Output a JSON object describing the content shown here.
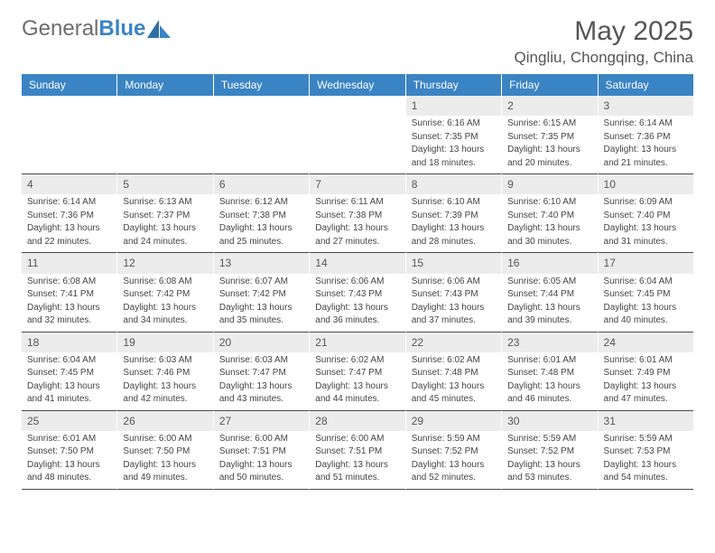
{
  "brand": {
    "part1": "General",
    "part2": "Blue"
  },
  "title": "May 2025",
  "location": "Qingliu, Chongqing, China",
  "colors": {
    "header_bg": "#3b84c4",
    "header_text": "#ffffff",
    "daynum_bg": "#ececec",
    "body_text": "#444444",
    "rule": "#4a4a4a"
  },
  "daysOfWeek": [
    "Sunday",
    "Monday",
    "Tuesday",
    "Wednesday",
    "Thursday",
    "Friday",
    "Saturday"
  ],
  "weeks": [
    [
      {
        "n": "",
        "blank": true
      },
      {
        "n": "",
        "blank": true
      },
      {
        "n": "",
        "blank": true
      },
      {
        "n": "",
        "blank": true
      },
      {
        "n": "1",
        "sr": "Sunrise: 6:16 AM",
        "ss": "Sunset: 7:35 PM",
        "d1": "Daylight: 13 hours",
        "d2": "and 18 minutes."
      },
      {
        "n": "2",
        "sr": "Sunrise: 6:15 AM",
        "ss": "Sunset: 7:35 PM",
        "d1": "Daylight: 13 hours",
        "d2": "and 20 minutes."
      },
      {
        "n": "3",
        "sr": "Sunrise: 6:14 AM",
        "ss": "Sunset: 7:36 PM",
        "d1": "Daylight: 13 hours",
        "d2": "and 21 minutes."
      }
    ],
    [
      {
        "n": "4",
        "sr": "Sunrise: 6:14 AM",
        "ss": "Sunset: 7:36 PM",
        "d1": "Daylight: 13 hours",
        "d2": "and 22 minutes."
      },
      {
        "n": "5",
        "sr": "Sunrise: 6:13 AM",
        "ss": "Sunset: 7:37 PM",
        "d1": "Daylight: 13 hours",
        "d2": "and 24 minutes."
      },
      {
        "n": "6",
        "sr": "Sunrise: 6:12 AM",
        "ss": "Sunset: 7:38 PM",
        "d1": "Daylight: 13 hours",
        "d2": "and 25 minutes."
      },
      {
        "n": "7",
        "sr": "Sunrise: 6:11 AM",
        "ss": "Sunset: 7:38 PM",
        "d1": "Daylight: 13 hours",
        "d2": "and 27 minutes."
      },
      {
        "n": "8",
        "sr": "Sunrise: 6:10 AM",
        "ss": "Sunset: 7:39 PM",
        "d1": "Daylight: 13 hours",
        "d2": "and 28 minutes."
      },
      {
        "n": "9",
        "sr": "Sunrise: 6:10 AM",
        "ss": "Sunset: 7:40 PM",
        "d1": "Daylight: 13 hours",
        "d2": "and 30 minutes."
      },
      {
        "n": "10",
        "sr": "Sunrise: 6:09 AM",
        "ss": "Sunset: 7:40 PM",
        "d1": "Daylight: 13 hours",
        "d2": "and 31 minutes."
      }
    ],
    [
      {
        "n": "11",
        "sr": "Sunrise: 6:08 AM",
        "ss": "Sunset: 7:41 PM",
        "d1": "Daylight: 13 hours",
        "d2": "and 32 minutes."
      },
      {
        "n": "12",
        "sr": "Sunrise: 6:08 AM",
        "ss": "Sunset: 7:42 PM",
        "d1": "Daylight: 13 hours",
        "d2": "and 34 minutes."
      },
      {
        "n": "13",
        "sr": "Sunrise: 6:07 AM",
        "ss": "Sunset: 7:42 PM",
        "d1": "Daylight: 13 hours",
        "d2": "and 35 minutes."
      },
      {
        "n": "14",
        "sr": "Sunrise: 6:06 AM",
        "ss": "Sunset: 7:43 PM",
        "d1": "Daylight: 13 hours",
        "d2": "and 36 minutes."
      },
      {
        "n": "15",
        "sr": "Sunrise: 6:06 AM",
        "ss": "Sunset: 7:43 PM",
        "d1": "Daylight: 13 hours",
        "d2": "and 37 minutes."
      },
      {
        "n": "16",
        "sr": "Sunrise: 6:05 AM",
        "ss": "Sunset: 7:44 PM",
        "d1": "Daylight: 13 hours",
        "d2": "and 39 minutes."
      },
      {
        "n": "17",
        "sr": "Sunrise: 6:04 AM",
        "ss": "Sunset: 7:45 PM",
        "d1": "Daylight: 13 hours",
        "d2": "and 40 minutes."
      }
    ],
    [
      {
        "n": "18",
        "sr": "Sunrise: 6:04 AM",
        "ss": "Sunset: 7:45 PM",
        "d1": "Daylight: 13 hours",
        "d2": "and 41 minutes."
      },
      {
        "n": "19",
        "sr": "Sunrise: 6:03 AM",
        "ss": "Sunset: 7:46 PM",
        "d1": "Daylight: 13 hours",
        "d2": "and 42 minutes."
      },
      {
        "n": "20",
        "sr": "Sunrise: 6:03 AM",
        "ss": "Sunset: 7:47 PM",
        "d1": "Daylight: 13 hours",
        "d2": "and 43 minutes."
      },
      {
        "n": "21",
        "sr": "Sunrise: 6:02 AM",
        "ss": "Sunset: 7:47 PM",
        "d1": "Daylight: 13 hours",
        "d2": "and 44 minutes."
      },
      {
        "n": "22",
        "sr": "Sunrise: 6:02 AM",
        "ss": "Sunset: 7:48 PM",
        "d1": "Daylight: 13 hours",
        "d2": "and 45 minutes."
      },
      {
        "n": "23",
        "sr": "Sunrise: 6:01 AM",
        "ss": "Sunset: 7:48 PM",
        "d1": "Daylight: 13 hours",
        "d2": "and 46 minutes."
      },
      {
        "n": "24",
        "sr": "Sunrise: 6:01 AM",
        "ss": "Sunset: 7:49 PM",
        "d1": "Daylight: 13 hours",
        "d2": "and 47 minutes."
      }
    ],
    [
      {
        "n": "25",
        "sr": "Sunrise: 6:01 AM",
        "ss": "Sunset: 7:50 PM",
        "d1": "Daylight: 13 hours",
        "d2": "and 48 minutes."
      },
      {
        "n": "26",
        "sr": "Sunrise: 6:00 AM",
        "ss": "Sunset: 7:50 PM",
        "d1": "Daylight: 13 hours",
        "d2": "and 49 minutes."
      },
      {
        "n": "27",
        "sr": "Sunrise: 6:00 AM",
        "ss": "Sunset: 7:51 PM",
        "d1": "Daylight: 13 hours",
        "d2": "and 50 minutes."
      },
      {
        "n": "28",
        "sr": "Sunrise: 6:00 AM",
        "ss": "Sunset: 7:51 PM",
        "d1": "Daylight: 13 hours",
        "d2": "and 51 minutes."
      },
      {
        "n": "29",
        "sr": "Sunrise: 5:59 AM",
        "ss": "Sunset: 7:52 PM",
        "d1": "Daylight: 13 hours",
        "d2": "and 52 minutes."
      },
      {
        "n": "30",
        "sr": "Sunrise: 5:59 AM",
        "ss": "Sunset: 7:52 PM",
        "d1": "Daylight: 13 hours",
        "d2": "and 53 minutes."
      },
      {
        "n": "31",
        "sr": "Sunrise: 5:59 AM",
        "ss": "Sunset: 7:53 PM",
        "d1": "Daylight: 13 hours",
        "d2": "and 54 minutes."
      }
    ]
  ]
}
